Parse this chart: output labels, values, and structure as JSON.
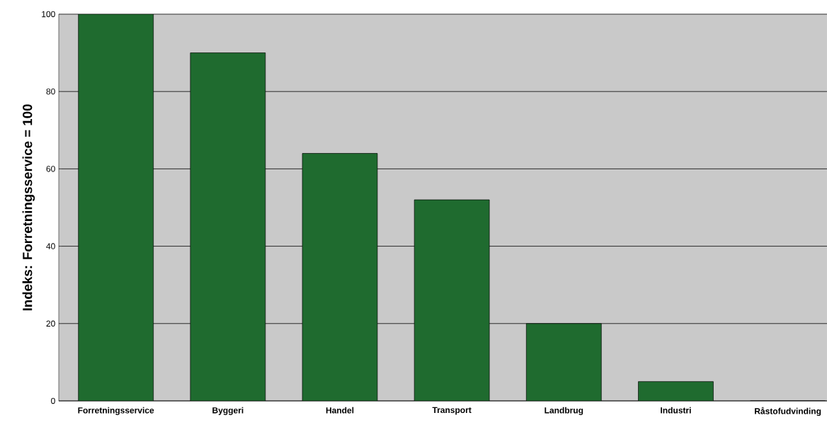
{
  "chart_data": {
    "type": "bar",
    "ylabel": "Indeks: Forretningsservice = 100",
    "categories": [
      "Forretningsservice",
      "Byggeri",
      "Handel",
      "Transport",
      "Landbrug",
      "Industri",
      "Råstofudvinding"
    ],
    "values": [
      100,
      90,
      64,
      52,
      20,
      5,
      0
    ],
    "color": "#1f6b2f",
    "ylim": [
      0,
      100
    ],
    "yticks": [
      0,
      20,
      40,
      60,
      80,
      100
    ],
    "grid": "y"
  }
}
